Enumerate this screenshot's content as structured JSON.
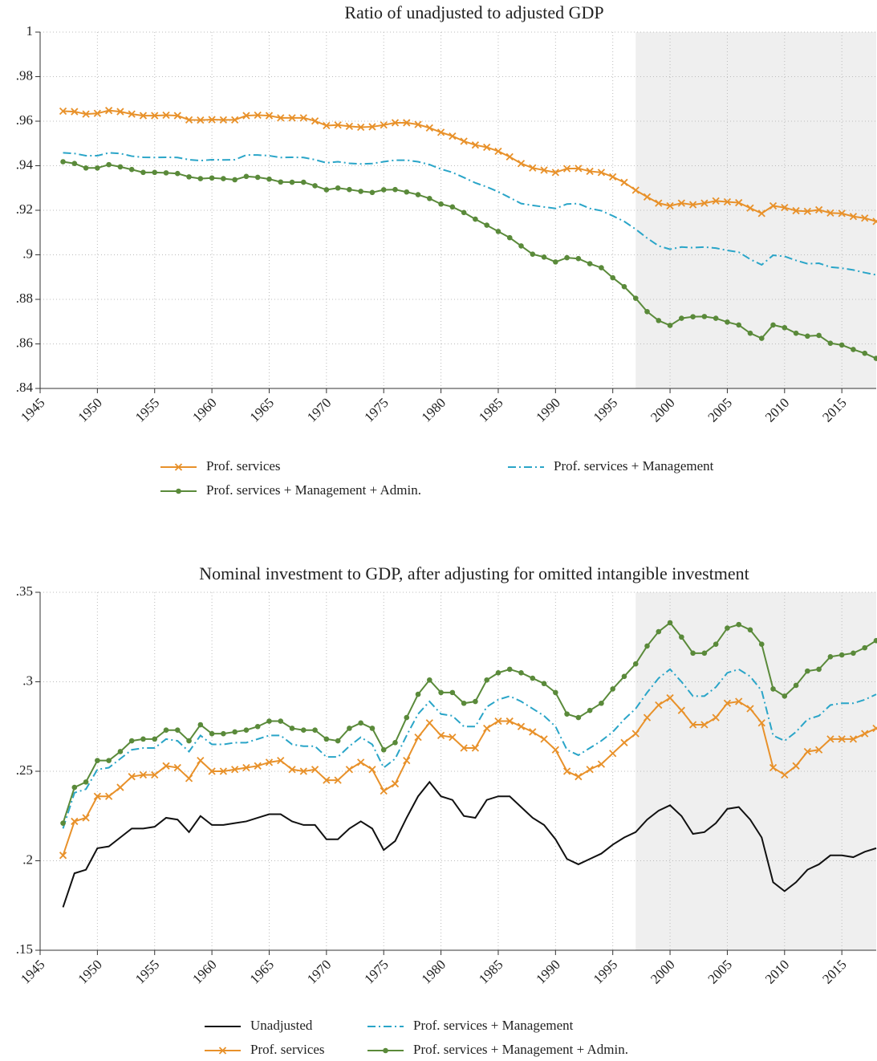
{
  "chart_data": [
    {
      "type": "line",
      "title": "Ratio of unadjusted to adjusted GDP",
      "x": [
        1947,
        1948,
        1949,
        1950,
        1951,
        1952,
        1953,
        1954,
        1955,
        1956,
        1957,
        1958,
        1959,
        1960,
        1961,
        1962,
        1963,
        1964,
        1965,
        1966,
        1967,
        1968,
        1969,
        1970,
        1971,
        1972,
        1973,
        1974,
        1975,
        1976,
        1977,
        1978,
        1979,
        1980,
        1981,
        1982,
        1983,
        1984,
        1985,
        1986,
        1987,
        1988,
        1989,
        1990,
        1991,
        1992,
        1993,
        1994,
        1995,
        1996,
        1997,
        1998,
        1999,
        2000,
        2001,
        2002,
        2003,
        2004,
        2005,
        2006,
        2007,
        2008,
        2009,
        2010,
        2011,
        2012,
        2013,
        2014,
        2015,
        2016,
        2017,
        2018
      ],
      "xlim": [
        1945,
        2018
      ],
      "xticks": [
        1945,
        1950,
        1955,
        1960,
        1965,
        1970,
        1975,
        1980,
        1985,
        1990,
        1995,
        2000,
        2005,
        2010,
        2015
      ],
      "ylim": [
        0.84,
        1
      ],
      "yticks": [
        {
          "value": 1,
          "label": "1"
        },
        {
          "value": 0.98,
          "label": ".98"
        },
        {
          "value": 0.96,
          "label": ".96"
        },
        {
          "value": 0.94,
          "label": ".94"
        },
        {
          "value": 0.92,
          "label": ".92"
        },
        {
          "value": 0.9,
          "label": ".9"
        },
        {
          "value": 0.88,
          "label": ".88"
        },
        {
          "value": 0.86,
          "label": ".86"
        },
        {
          "value": 0.84,
          "label": ".84"
        }
      ],
      "grid": true,
      "shade": [
        1997,
        2018
      ],
      "shade_color": "#efefef",
      "series": [
        {
          "name": "Prof. services",
          "color": "#e8912a",
          "marker": "x",
          "dash": false,
          "values": [
            0.9645,
            0.9643,
            0.9632,
            0.9635,
            0.9648,
            0.9643,
            0.9632,
            0.9625,
            0.9625,
            0.9627,
            0.9625,
            0.9606,
            0.9605,
            0.9607,
            0.9606,
            0.9606,
            0.9625,
            0.9627,
            0.9625,
            0.9615,
            0.9615,
            0.9615,
            0.9601,
            0.958,
            0.9583,
            0.9577,
            0.9573,
            0.9575,
            0.9583,
            0.9593,
            0.9593,
            0.9585,
            0.957,
            0.955,
            0.9533,
            0.951,
            0.9493,
            0.9483,
            0.9465,
            0.944,
            0.941,
            0.939,
            0.938,
            0.937,
            0.9387,
            0.9388,
            0.9375,
            0.937,
            0.935,
            0.9325,
            0.929,
            0.926,
            0.9232,
            0.922,
            0.9232,
            0.9225,
            0.9232,
            0.9242,
            0.9238,
            0.9234,
            0.921,
            0.9186,
            0.922,
            0.9212,
            0.9198,
            0.9195,
            0.9202,
            0.9188,
            0.9186,
            0.9172,
            0.9165,
            0.915
          ]
        },
        {
          "name": "Prof. services + Management",
          "color": "#2aa5c8",
          "marker": "none",
          "dash": true,
          "values": [
            0.9458,
            0.9455,
            0.9445,
            0.9445,
            0.9458,
            0.9455,
            0.9443,
            0.9438,
            0.9437,
            0.9438,
            0.9437,
            0.9427,
            0.9423,
            0.9427,
            0.9426,
            0.9427,
            0.9448,
            0.9448,
            0.9445,
            0.9437,
            0.9438,
            0.9437,
            0.9427,
            0.9413,
            0.9418,
            0.9411,
            0.9408,
            0.941,
            0.9418,
            0.9425,
            0.9425,
            0.9418,
            0.9405,
            0.9385,
            0.937,
            0.9347,
            0.9323,
            0.9305,
            0.9283,
            0.9257,
            0.923,
            0.9222,
            0.9215,
            0.9208,
            0.9228,
            0.923,
            0.9208,
            0.9198,
            0.9175,
            0.915,
            0.9115,
            0.9075,
            0.904,
            0.9025,
            0.9035,
            0.9032,
            0.9035,
            0.903,
            0.902,
            0.9012,
            0.898,
            0.8955,
            0.8998,
            0.8993,
            0.8975,
            0.896,
            0.8962,
            0.8945,
            0.894,
            0.8932,
            0.892,
            0.891
          ]
        },
        {
          "name": "Prof. services + Management + Admin.",
          "color": "#5a8a3a",
          "marker": "dot",
          "dash": false,
          "values": [
            0.9418,
            0.941,
            0.939,
            0.939,
            0.9405,
            0.9395,
            0.9383,
            0.937,
            0.937,
            0.9368,
            0.9365,
            0.935,
            0.9342,
            0.9345,
            0.9342,
            0.9337,
            0.9352,
            0.9348,
            0.934,
            0.9327,
            0.9326,
            0.9326,
            0.931,
            0.9292,
            0.93,
            0.9293,
            0.9285,
            0.928,
            0.9292,
            0.9293,
            0.9282,
            0.927,
            0.9253,
            0.9228,
            0.9215,
            0.919,
            0.916,
            0.9133,
            0.9105,
            0.9077,
            0.904,
            0.9003,
            0.899,
            0.8968,
            0.8987,
            0.8983,
            0.896,
            0.8942,
            0.8897,
            0.8857,
            0.8805,
            0.8745,
            0.8705,
            0.8683,
            0.8715,
            0.8722,
            0.8723,
            0.8715,
            0.8698,
            0.8685,
            0.8648,
            0.8625,
            0.8685,
            0.8673,
            0.8648,
            0.8635,
            0.8638,
            0.8603,
            0.8595,
            0.8575,
            0.8558,
            0.8535
          ]
        }
      ]
    },
    {
      "type": "line",
      "title": "Nominal investment to GDP, after adjusting for omitted intangible investment",
      "x": [
        1947,
        1948,
        1949,
        1950,
        1951,
        1952,
        1953,
        1954,
        1955,
        1956,
        1957,
        1958,
        1959,
        1960,
        1961,
        1962,
        1963,
        1964,
        1965,
        1966,
        1967,
        1968,
        1969,
        1970,
        1971,
        1972,
        1973,
        1974,
        1975,
        1976,
        1977,
        1978,
        1979,
        1980,
        1981,
        1982,
        1983,
        1984,
        1985,
        1986,
        1987,
        1988,
        1989,
        1990,
        1991,
        1992,
        1993,
        1994,
        1995,
        1996,
        1997,
        1998,
        1999,
        2000,
        2001,
        2002,
        2003,
        2004,
        2005,
        2006,
        2007,
        2008,
        2009,
        2010,
        2011,
        2012,
        2013,
        2014,
        2015,
        2016,
        2017,
        2018
      ],
      "xlim": [
        1945,
        2018
      ],
      "xticks": [
        1945,
        1950,
        1955,
        1960,
        1965,
        1970,
        1975,
        1980,
        1985,
        1990,
        1995,
        2000,
        2005,
        2010,
        2015
      ],
      "ylim": [
        0.15,
        0.35
      ],
      "yticks": [
        {
          "value": 0.35,
          "label": ".35"
        },
        {
          "value": 0.3,
          "label": ".3"
        },
        {
          "value": 0.25,
          "label": ".25"
        },
        {
          "value": 0.2,
          "label": ".2"
        },
        {
          "value": 0.15,
          "label": ".15"
        }
      ],
      "grid": true,
      "shade": [
        1997,
        2018
      ],
      "shade_color": "#efefef",
      "series": [
        {
          "name": "Unadjusted",
          "color": "#111111",
          "marker": "none",
          "dash": false,
          "values": [
            0.174,
            0.193,
            0.195,
            0.207,
            0.208,
            0.213,
            0.218,
            0.218,
            0.219,
            0.224,
            0.223,
            0.216,
            0.225,
            0.22,
            0.22,
            0.221,
            0.222,
            0.224,
            0.226,
            0.226,
            0.222,
            0.22,
            0.22,
            0.212,
            0.212,
            0.218,
            0.222,
            0.218,
            0.206,
            0.211,
            0.224,
            0.236,
            0.244,
            0.236,
            0.234,
            0.225,
            0.224,
            0.234,
            0.236,
            0.236,
            0.23,
            0.224,
            0.22,
            0.212,
            0.201,
            0.198,
            0.201,
            0.204,
            0.209,
            0.213,
            0.216,
            0.223,
            0.228,
            0.231,
            0.225,
            0.215,
            0.216,
            0.221,
            0.229,
            0.23,
            0.223,
            0.213,
            0.188,
            0.183,
            0.188,
            0.195,
            0.198,
            0.203,
            0.203,
            0.202,
            0.205,
            0.207
          ]
        },
        {
          "name": "Prof. services",
          "color": "#e8912a",
          "marker": "x",
          "dash": false,
          "values": [
            0.203,
            0.222,
            0.224,
            0.236,
            0.236,
            0.241,
            0.247,
            0.248,
            0.248,
            0.253,
            0.252,
            0.246,
            0.256,
            0.25,
            0.25,
            0.251,
            0.252,
            0.253,
            0.255,
            0.256,
            0.251,
            0.25,
            0.251,
            0.245,
            0.245,
            0.251,
            0.255,
            0.251,
            0.239,
            0.243,
            0.256,
            0.269,
            0.277,
            0.27,
            0.269,
            0.263,
            0.263,
            0.274,
            0.278,
            0.278,
            0.275,
            0.272,
            0.268,
            0.262,
            0.25,
            0.247,
            0.251,
            0.254,
            0.26,
            0.266,
            0.271,
            0.28,
            0.287,
            0.291,
            0.284,
            0.276,
            0.276,
            0.28,
            0.288,
            0.289,
            0.285,
            0.277,
            0.252,
            0.248,
            0.253,
            0.261,
            0.262,
            0.268,
            0.268,
            0.268,
            0.271,
            0.274
          ]
        },
        {
          "name": "Prof. services + Management",
          "color": "#2aa5c8",
          "marker": "none",
          "dash": true,
          "values": [
            0.218,
            0.238,
            0.24,
            0.251,
            0.252,
            0.257,
            0.262,
            0.263,
            0.263,
            0.268,
            0.267,
            0.261,
            0.27,
            0.265,
            0.265,
            0.266,
            0.266,
            0.268,
            0.27,
            0.27,
            0.265,
            0.264,
            0.264,
            0.258,
            0.258,
            0.264,
            0.269,
            0.265,
            0.252,
            0.257,
            0.27,
            0.282,
            0.289,
            0.282,
            0.281,
            0.275,
            0.275,
            0.286,
            0.29,
            0.292,
            0.289,
            0.285,
            0.281,
            0.275,
            0.262,
            0.259,
            0.263,
            0.267,
            0.272,
            0.279,
            0.285,
            0.294,
            0.302,
            0.307,
            0.3,
            0.292,
            0.292,
            0.297,
            0.305,
            0.307,
            0.303,
            0.295,
            0.27,
            0.267,
            0.272,
            0.279,
            0.281,
            0.287,
            0.288,
            0.288,
            0.29,
            0.293
          ]
        },
        {
          "name": "Prof. services + Management + Admin.",
          "color": "#5a8a3a",
          "marker": "dot",
          "dash": false,
          "values": [
            0.221,
            0.241,
            0.244,
            0.256,
            0.256,
            0.261,
            0.267,
            0.268,
            0.268,
            0.273,
            0.273,
            0.267,
            0.276,
            0.271,
            0.271,
            0.272,
            0.273,
            0.275,
            0.278,
            0.278,
            0.274,
            0.273,
            0.273,
            0.268,
            0.267,
            0.274,
            0.277,
            0.274,
            0.262,
            0.266,
            0.28,
            0.293,
            0.301,
            0.294,
            0.294,
            0.288,
            0.289,
            0.301,
            0.305,
            0.307,
            0.305,
            0.302,
            0.299,
            0.294,
            0.282,
            0.28,
            0.284,
            0.288,
            0.296,
            0.303,
            0.31,
            0.32,
            0.328,
            0.333,
            0.325,
            0.316,
            0.316,
            0.321,
            0.33,
            0.332,
            0.329,
            0.321,
            0.296,
            0.292,
            0.298,
            0.306,
            0.307,
            0.314,
            0.315,
            0.316,
            0.319,
            0.323
          ]
        }
      ]
    }
  ]
}
